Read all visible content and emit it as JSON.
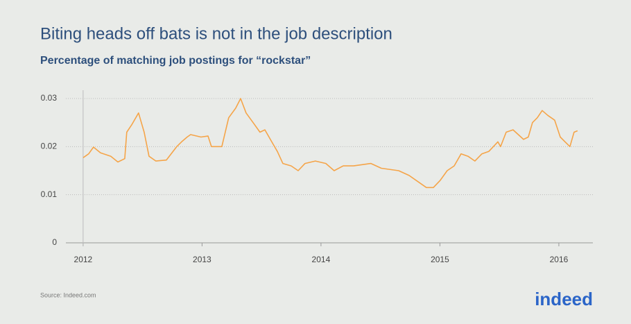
{
  "chart_data": {
    "type": "line",
    "title": "Biting heads off bats is not in the job description",
    "subtitle": "Percentage of matching job postings for “rockstar”",
    "x": [
      2012.0,
      2012.047,
      2012.087,
      2012.146,
      2012.233,
      2012.292,
      2012.35,
      2012.367,
      2012.408,
      2012.466,
      2012.513,
      2012.554,
      2012.612,
      2012.7,
      2012.787,
      2012.828,
      2012.875,
      2012.904,
      2012.991,
      2013.05,
      2013.079,
      2013.166,
      2013.224,
      2013.283,
      2013.324,
      2013.37,
      2013.429,
      2013.487,
      2013.528,
      2013.586,
      2013.633,
      2013.679,
      2013.749,
      2013.808,
      2013.866,
      2013.953,
      2014.041,
      2014.111,
      2014.187,
      2014.274,
      2014.42,
      2014.507,
      2014.653,
      2014.741,
      2014.828,
      2014.886,
      2014.945,
      2015.003,
      2015.061,
      2015.12,
      2015.178,
      2015.236,
      2015.294,
      2015.353,
      2015.411,
      2015.487,
      2015.51,
      2015.557,
      2015.615,
      2015.703,
      2015.743,
      2015.778,
      2015.819,
      2015.86,
      2015.907,
      2015.965,
      2016.012,
      2016.052,
      2016.093,
      2016.128,
      2016.157
    ],
    "series": [
      {
        "name": "rockstar",
        "color": "#f5a448",
        "values": [
          0.0177,
          0.0185,
          0.0199,
          0.0187,
          0.018,
          0.0168,
          0.0175,
          0.023,
          0.0245,
          0.027,
          0.023,
          0.018,
          0.017,
          0.0172,
          0.02,
          0.021,
          0.022,
          0.0225,
          0.022,
          0.0222,
          0.02,
          0.02,
          0.026,
          0.028,
          0.03,
          0.027,
          0.025,
          0.023,
          0.0235,
          0.021,
          0.019,
          0.0165,
          0.016,
          0.015,
          0.0165,
          0.017,
          0.0165,
          0.015,
          0.016,
          0.016,
          0.0165,
          0.0155,
          0.015,
          0.014,
          0.0125,
          0.0115,
          0.0115,
          0.013,
          0.015,
          0.016,
          0.0185,
          0.018,
          0.017,
          0.0185,
          0.019,
          0.021,
          0.02,
          0.023,
          0.0235,
          0.0215,
          0.022,
          0.025,
          0.026,
          0.0275,
          0.0265,
          0.0255,
          0.022,
          0.021,
          0.02,
          0.023,
          0.0233
        ]
      }
    ],
    "xlim": [
      2011.855,
      2016.286
    ],
    "xticks": [
      2012,
      2013,
      2014,
      2015,
      2016
    ],
    "ylim": [
      0,
      0.03
    ],
    "yticks": [
      0,
      0.01,
      0.02,
      0.03
    ],
    "grid": true
  },
  "footer": {
    "source": "Source: Indeed.com",
    "logo": "indeed"
  }
}
